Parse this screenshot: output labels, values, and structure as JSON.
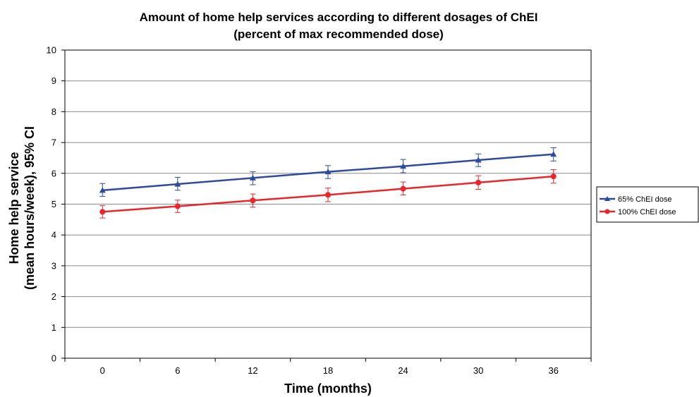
{
  "chart_data": {
    "type": "line",
    "title_line1": "Amount of home help services according to different dosages of ChEI",
    "title_line2": "(percent of max recommended dose)",
    "xlabel": "Time (months)",
    "ylabel_line1": "Home help service",
    "ylabel_line2": "(mean hours/week), 95% CI",
    "x": [
      0,
      6,
      12,
      18,
      24,
      30,
      36
    ],
    "x_tick_labels": [
      "0",
      "6",
      "12",
      "18",
      "24",
      "30",
      "36"
    ],
    "ylim": [
      0,
      10
    ],
    "y_ticks": [
      "0",
      "1",
      "2",
      "3",
      "4",
      "5",
      "6",
      "7",
      "8",
      "9",
      "10"
    ],
    "grid": true,
    "legend_position": "right",
    "series": [
      {
        "name": "65% ChEI dose",
        "color": "#2f4b9b",
        "marker": "triangle",
        "values": [
          5.45,
          5.65,
          5.85,
          6.05,
          6.23,
          6.43,
          6.62
        ],
        "ci_low": [
          5.25,
          5.45,
          5.63,
          5.83,
          6.02,
          6.22,
          6.4
        ],
        "ci_high": [
          5.67,
          5.87,
          6.05,
          6.25,
          6.45,
          6.63,
          6.83
        ]
      },
      {
        "name": "100% ChEI dose",
        "color": "#e8262c",
        "marker": "circle",
        "values": [
          4.75,
          4.93,
          5.12,
          5.3,
          5.5,
          5.7,
          5.9
        ],
        "ci_low": [
          4.55,
          4.73,
          4.9,
          5.08,
          5.3,
          5.48,
          5.68
        ],
        "ci_high": [
          4.95,
          5.13,
          5.33,
          5.52,
          5.72,
          5.92,
          6.12
        ]
      }
    ]
  }
}
